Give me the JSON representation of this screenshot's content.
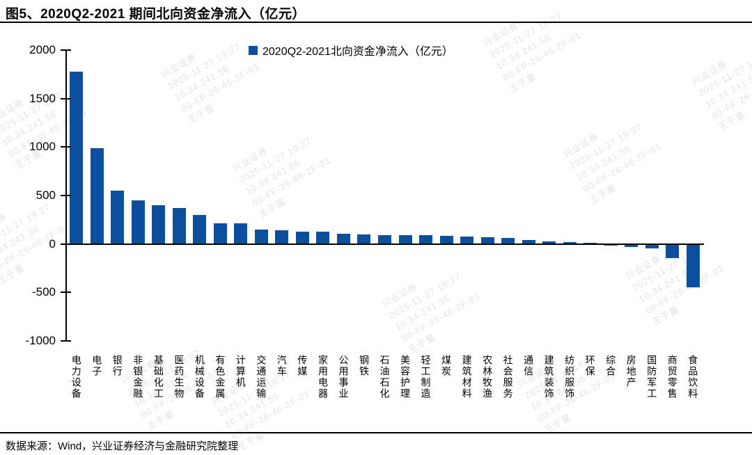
{
  "title": "图5、2020Q2-2021 期间北向资金净流入（亿元）",
  "legend": {
    "label": "2020Q2-2021北向资金净流入（亿元）"
  },
  "footer": {
    "source": "数据来源：Wind，兴业证券经济与金融研究院整理"
  },
  "watermark": {
    "lines": [
      "兴业证券",
      "2025-11-27 19:27",
      "10.34.241.56",
      "00-FF-26-46-2F-01",
      "王于童"
    ]
  },
  "colors": {
    "bar": "#0d4f9f",
    "axis": "#000000",
    "watermark": "#e3e3e3"
  },
  "chart_data": {
    "type": "bar",
    "title": "图5、2020Q2-2021 期间北向资金净流入（亿元）",
    "legend": [
      "2020Q2-2021北向资金净流入（亿元）"
    ],
    "legend_position": "top-center",
    "categories": [
      "电力设备",
      "电子",
      "银行",
      "非银金融",
      "基础化工",
      "医药生物",
      "机械设备",
      "有色金属",
      "计算机",
      "交通运输",
      "汽车",
      "传媒",
      "家用电器",
      "公用事业",
      "钢铁",
      "石油石化",
      "美容护理",
      "轻工制造",
      "煤炭",
      "建筑材料",
      "农林牧渔",
      "社会服务",
      "通信",
      "建筑装饰",
      "纺织服饰",
      "环保",
      "综合",
      "房地产",
      "国防军工",
      "商贸零售",
      "食品饮料"
    ],
    "values": [
      1780,
      985,
      550,
      450,
      400,
      370,
      300,
      215,
      210,
      148,
      142,
      124,
      126,
      105,
      97,
      90,
      91,
      88,
      86,
      75,
      72,
      60,
      38,
      26,
      22,
      10,
      -6,
      -15,
      -30,
      -130,
      -430
    ],
    "ylabel": "",
    "xlabel": "",
    "ylim": [
      -1000,
      2000
    ],
    "yticks": [
      2000,
      1500,
      1000,
      500,
      0,
      -500,
      -1000
    ],
    "grid": false,
    "bar_color": "#0d4f9f",
    "unit": "亿元"
  }
}
